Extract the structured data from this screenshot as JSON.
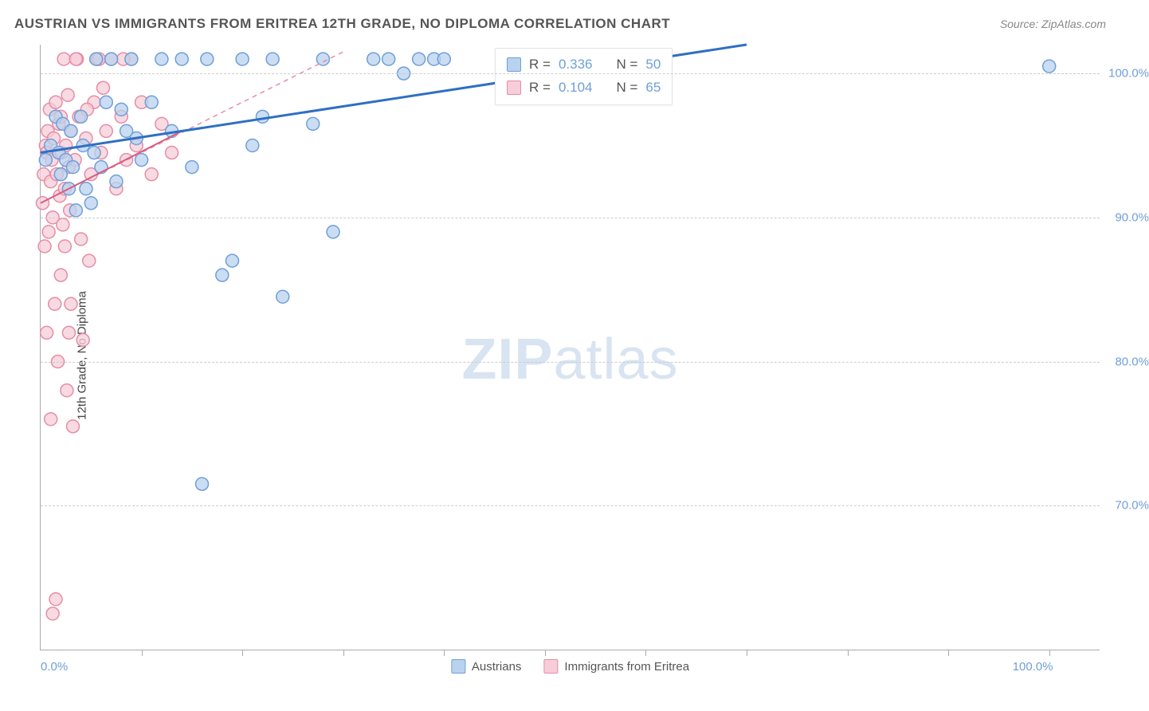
{
  "title": "AUSTRIAN VS IMMIGRANTS FROM ERITREA 12TH GRADE, NO DIPLOMA CORRELATION CHART",
  "source": "Source: ZipAtlas.com",
  "watermark_a": "ZIP",
  "watermark_b": "atlas",
  "yaxis": {
    "title": "12th Grade, No Diploma",
    "min": 60.0,
    "max": 102.0,
    "ticks": [
      70.0,
      80.0,
      90.0,
      100.0
    ],
    "tick_labels": [
      "70.0%",
      "80.0%",
      "90.0%",
      "100.0%"
    ],
    "label_color": "#6f9fd8"
  },
  "xaxis": {
    "min": 0.0,
    "max": 105.0,
    "major_labels": [
      0.0,
      100.0
    ],
    "major_label_text": [
      "0.0%",
      "100.0%"
    ],
    "minor_ticks": [
      10,
      20,
      30,
      40,
      50,
      60,
      70,
      80,
      90,
      100
    ],
    "label_color": "#6f9fd8"
  },
  "series": [
    {
      "name": "Austrians",
      "label": "Austrians",
      "color_fill": "#b9d2ee",
      "color_stroke": "#6f9fd8",
      "marker_radius": 8,
      "marker_opacity": 0.75,
      "R_label": "R =",
      "R": "0.336",
      "N_label": "N =",
      "N": "50",
      "trend": {
        "x1": 0,
        "y1": 94.5,
        "x2": 70,
        "y2": 102.0,
        "dash": false,
        "width": 3,
        "color": "#2f6fc4"
      },
      "points": [
        [
          0.5,
          94
        ],
        [
          1,
          95
        ],
        [
          1.5,
          97
        ],
        [
          1.8,
          94.5
        ],
        [
          2,
          93
        ],
        [
          2.2,
          96.5
        ],
        [
          2.5,
          94
        ],
        [
          2.8,
          92
        ],
        [
          3,
          96
        ],
        [
          3.2,
          93.5
        ],
        [
          3.5,
          90.5
        ],
        [
          4,
          97
        ],
        [
          4.2,
          95
        ],
        [
          4.5,
          92
        ],
        [
          5,
          91
        ],
        [
          5.3,
          94.5
        ],
        [
          5.5,
          101
        ],
        [
          6,
          93.5
        ],
        [
          6.5,
          98
        ],
        [
          7,
          101
        ],
        [
          7.5,
          92.5
        ],
        [
          8,
          97.5
        ],
        [
          8.5,
          96
        ],
        [
          9,
          101
        ],
        [
          9.5,
          95.5
        ],
        [
          10,
          94
        ],
        [
          11,
          98
        ],
        [
          12,
          101
        ],
        [
          13,
          96
        ],
        [
          14,
          101
        ],
        [
          15,
          93.5
        ],
        [
          16,
          71.5
        ],
        [
          16.5,
          101
        ],
        [
          18,
          86
        ],
        [
          19,
          87
        ],
        [
          20,
          101
        ],
        [
          21,
          95
        ],
        [
          22,
          97
        ],
        [
          23,
          101
        ],
        [
          24,
          84.5
        ],
        [
          27,
          96.5
        ],
        [
          28,
          101
        ],
        [
          29,
          89
        ],
        [
          33,
          101
        ],
        [
          34.5,
          101
        ],
        [
          36,
          100
        ],
        [
          37.5,
          101
        ],
        [
          39,
          101
        ],
        [
          40,
          101
        ],
        [
          100,
          100.5
        ]
      ]
    },
    {
      "name": "Immigrants from Eritrea",
      "label": "Immigrants from Eritrea",
      "color_fill": "#f6cdd8",
      "color_stroke": "#e68da6",
      "marker_radius": 8,
      "marker_opacity": 0.75,
      "R_label": "R =",
      "R": "0.104",
      "N_label": "N =",
      "N": "65",
      "trend": {
        "x1": 0,
        "y1": 91.0,
        "x2": 30,
        "y2": 101.5,
        "dash": true,
        "width": 1.5,
        "color": "#e68da6"
      },
      "trend_solid": {
        "x1": 0,
        "y1": 91.0,
        "x2": 14,
        "y2": 96.0,
        "width": 2,
        "color": "#d75f83"
      },
      "points": [
        [
          0.2,
          91
        ],
        [
          0.3,
          93
        ],
        [
          0.4,
          88
        ],
        [
          0.5,
          95
        ],
        [
          0.6,
          94.5
        ],
        [
          0.7,
          96
        ],
        [
          0.8,
          89
        ],
        [
          0.9,
          97.5
        ],
        [
          1,
          92.5
        ],
        [
          1.1,
          94
        ],
        [
          1.2,
          90
        ],
        [
          1.3,
          95.5
        ],
        [
          1.4,
          84
        ],
        [
          1.5,
          98
        ],
        [
          1.6,
          93
        ],
        [
          1.7,
          80
        ],
        [
          1.8,
          96.5
        ],
        [
          1.9,
          91.5
        ],
        [
          2,
          97
        ],
        [
          2.1,
          94.5
        ],
        [
          2.2,
          89.5
        ],
        [
          2.3,
          101
        ],
        [
          2.4,
          92
        ],
        [
          2.5,
          95
        ],
        [
          2.6,
          78
        ],
        [
          2.7,
          98.5
        ],
        [
          2.8,
          93.5
        ],
        [
          2.9,
          90.5
        ],
        [
          3,
          96
        ],
        [
          3.2,
          75.5
        ],
        [
          3.4,
          94
        ],
        [
          3.6,
          101
        ],
        [
          3.8,
          97
        ],
        [
          4,
          88.5
        ],
        [
          4.2,
          81.5
        ],
        [
          4.5,
          95.5
        ],
        [
          4.8,
          87
        ],
        [
          5,
          93
        ],
        [
          5.3,
          98
        ],
        [
          5.6,
          101
        ],
        [
          6,
          94.5
        ],
        [
          6.5,
          96
        ],
        [
          7,
          101
        ],
        [
          7.5,
          92
        ],
        [
          8,
          97
        ],
        [
          8.5,
          94
        ],
        [
          9,
          101
        ],
        [
          9.5,
          95
        ],
        [
          10,
          98
        ],
        [
          11,
          93
        ],
        [
          12,
          96.5
        ],
        [
          13,
          94.5
        ],
        [
          1.2,
          62.5
        ],
        [
          1.5,
          63.5
        ],
        [
          2.8,
          82
        ],
        [
          3.5,
          101
        ],
        [
          4.6,
          97.5
        ],
        [
          5.8,
          101
        ],
        [
          2.0,
          86
        ],
        [
          0.6,
          82
        ],
        [
          1.0,
          76
        ],
        [
          2.4,
          88
        ],
        [
          3.0,
          84
        ],
        [
          6.2,
          99
        ],
        [
          8.2,
          101
        ]
      ]
    }
  ],
  "background_color": "#ffffff",
  "grid_color": "#cccccc"
}
